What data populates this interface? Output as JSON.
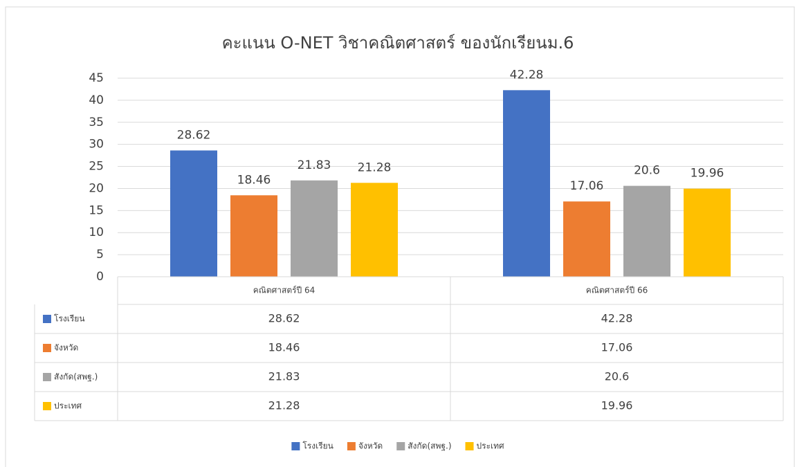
{
  "chart_data": {
    "type": "bar",
    "title": "คะแนน O-NET วิชาคณิตศาสตร์ ของนักเรียนม.6",
    "categories": [
      "คณิตศาสตร์ปี 64",
      "คณิตศาสตร์ปี 66"
    ],
    "series": [
      {
        "name": "โรงเรียน",
        "color": "#4472c4",
        "values": [
          28.62,
          42.28
        ]
      },
      {
        "name": "จังหวัด",
        "color": "#ed7d31",
        "values": [
          18.46,
          17.06
        ]
      },
      {
        "name": "สังกัด(สพฐ.)",
        "color": "#a5a5a5",
        "values": [
          21.83,
          20.6
        ]
      },
      {
        "name": "ประเทศ",
        "color": "#ffc000",
        "values": [
          21.28,
          19.96
        ]
      }
    ],
    "ylim": [
      0,
      45
    ],
    "yticks": [
      0,
      5,
      10,
      15,
      20,
      25,
      30,
      35,
      40,
      45
    ],
    "grid": true,
    "legend": "bottom"
  }
}
